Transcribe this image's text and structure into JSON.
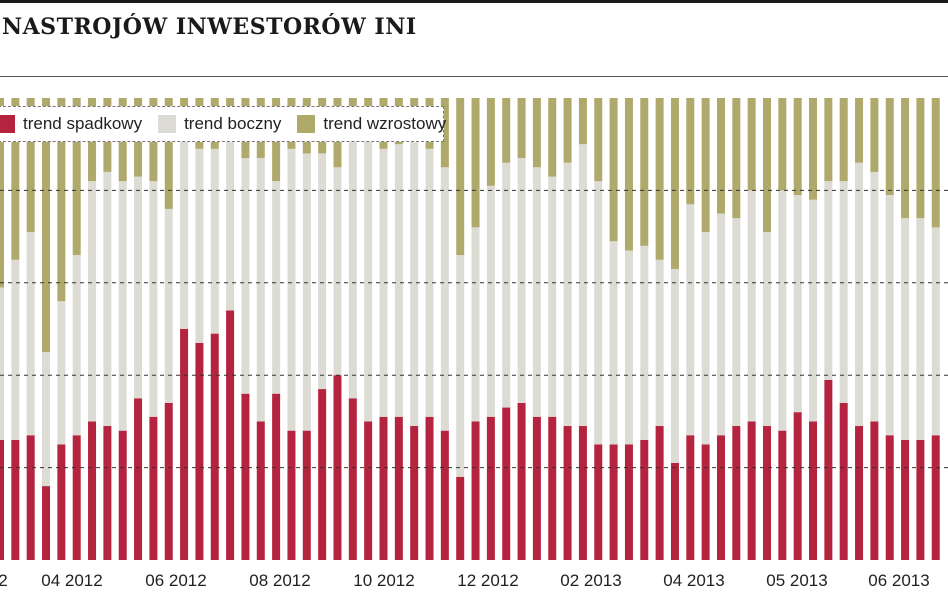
{
  "header": {
    "title": "NASTROJÓW INWESTORÓW INI"
  },
  "colors": {
    "trend_spadkowy": "#b5243e",
    "trend_boczny": "#dcdcd4",
    "trend_wzrostowy": "#b0a96c"
  },
  "chart_data": {
    "type": "bar",
    "stacked": true,
    "title": "NASTROJÓW INWESTORÓW INI",
    "xlabel": "",
    "ylabel": "",
    "ylim": [
      0,
      100
    ],
    "grid": true,
    "legend_placement": "top-left",
    "x_tick_labels": [
      "2",
      "04 2012",
      "06 2012",
      "08 2012",
      "10 2012",
      "12 2012",
      "02 2013",
      "04 2013",
      "05 2013",
      "06 2013"
    ],
    "series": [
      {
        "name": "trend spadkowy",
        "values": [
          26,
          26,
          27,
          16,
          25,
          27,
          30,
          29,
          28,
          35,
          31,
          34,
          50,
          47,
          49,
          54,
          36,
          30,
          36,
          28,
          28,
          37,
          40,
          35,
          30,
          31,
          31,
          29,
          31,
          28,
          18,
          30,
          31,
          33,
          34,
          31,
          31,
          29,
          29,
          25,
          25,
          25,
          26,
          29,
          21,
          27,
          25,
          27,
          29,
          30,
          29,
          28,
          32,
          30,
          39,
          34,
          29,
          30,
          27,
          26,
          26,
          27
        ]
      },
      {
        "name": "trend boczny",
        "values": [
          33,
          39,
          44,
          29,
          31,
          39,
          52,
          55,
          54,
          48,
          51,
          42,
          42,
          42,
          40,
          41,
          51,
          57,
          46,
          61,
          60,
          51,
          45,
          61,
          64,
          58,
          59,
          63,
          58,
          57,
          48,
          42,
          50,
          53,
          53,
          54,
          52,
          57,
          61,
          57,
          44,
          42,
          42,
          36,
          42,
          50,
          46,
          48,
          45,
          50,
          42,
          52,
          47,
          48,
          43,
          48,
          57,
          54,
          52,
          48,
          48,
          45
        ]
      },
      {
        "name": "trend wzrostowy",
        "values": [
          41,
          35,
          29,
          55,
          44,
          34,
          18,
          16,
          18,
          17,
          18,
          24,
          8,
          11,
          11,
          5,
          13,
          13,
          18,
          11,
          12,
          12,
          15,
          4,
          6,
          11,
          10,
          8,
          11,
          15,
          34,
          28,
          19,
          14,
          13,
          15,
          17,
          14,
          10,
          18,
          31,
          33,
          32,
          35,
          37,
          23,
          29,
          25,
          26,
          20,
          29,
          20,
          21,
          22,
          18,
          18,
          14,
          16,
          21,
          26,
          26,
          28
        ]
      }
    ]
  },
  "legend": {
    "items": [
      {
        "label": "trend spadkowy"
      },
      {
        "label": "trend boczny"
      },
      {
        "label": "trend wzrostowy"
      }
    ]
  }
}
